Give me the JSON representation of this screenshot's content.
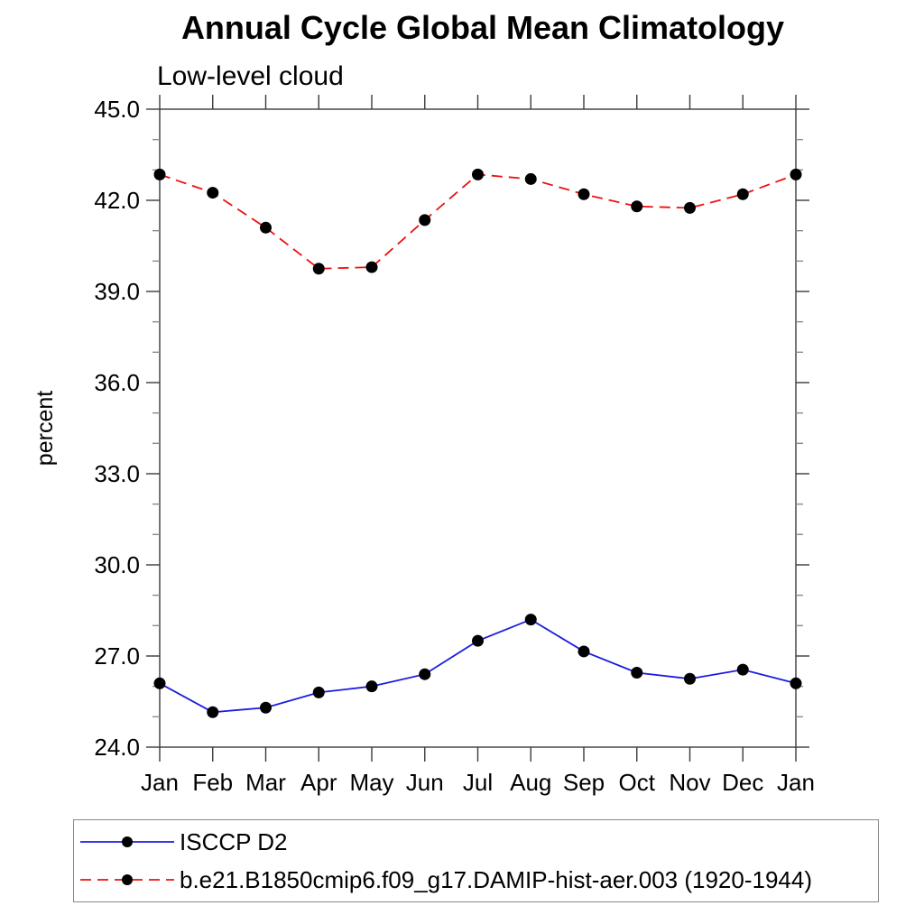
{
  "chart_data": {
    "type": "line",
    "title": "Annual Cycle Global Mean Climatology",
    "subtitle": "Low-level cloud",
    "ylabel": "percent",
    "xlabel": "",
    "categories": [
      "Jan",
      "Feb",
      "Mar",
      "Apr",
      "May",
      "Jun",
      "Jul",
      "Aug",
      "Sep",
      "Oct",
      "Nov",
      "Dec",
      "Jan"
    ],
    "ylim": [
      24.0,
      45.0
    ],
    "ytick_major_interval": 3.0,
    "ytick_minor_interval": 1.0,
    "ytick_labels": [
      "24.0",
      "27.0",
      "30.0",
      "33.0",
      "36.0",
      "39.0",
      "42.0",
      "45.0"
    ],
    "grid": false,
    "legend_position": "bottom",
    "axis_color": "#3a3a3a",
    "minor_tick_color": "#8a8a8a",
    "marker": "filled-circle",
    "marker_color": "#000000",
    "series": [
      {
        "name": "ISCCP D2",
        "color": "#1b1be0",
        "line_style": "solid",
        "values": [
          26.1,
          25.15,
          25.3,
          25.8,
          26.0,
          26.4,
          27.5,
          28.2,
          27.15,
          26.45,
          26.25,
          26.55,
          26.1
        ]
      },
      {
        "name": "b.e21.B1850cmip6.f09_g17.DAMIP-hist-aer.003 (1920-1944)",
        "color": "#ee1111",
        "line_style": "dashed",
        "values": [
          42.85,
          42.25,
          41.1,
          39.75,
          39.8,
          41.35,
          42.85,
          42.7,
          42.2,
          41.8,
          41.75,
          42.2,
          42.85
        ]
      }
    ]
  }
}
